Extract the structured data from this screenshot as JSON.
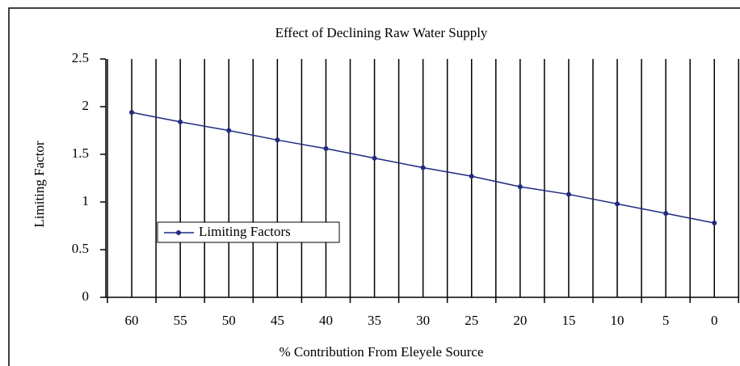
{
  "chart_data": {
    "type": "line",
    "title": "Effect of Declining Raw Water Supply",
    "x_label": "% Contribution From Eleyele Source",
    "y_label": "Limiting Factor",
    "categories": [
      "60",
      "55",
      "50",
      "45",
      "40",
      "35",
      "30",
      "25",
      "20",
      "15",
      "10",
      "5",
      "0"
    ],
    "series": [
      {
        "name": "Limiting Factors",
        "color": "#1f2a80",
        "values": [
          1.94,
          1.84,
          1.75,
          1.65,
          1.56,
          1.46,
          1.36,
          1.27,
          1.16,
          1.08,
          0.98,
          0.88,
          0.78
        ]
      }
    ],
    "ylim": [
      0,
      2.5
    ],
    "yticks": [
      0,
      0.5,
      1,
      1.5,
      2,
      2.5
    ]
  }
}
